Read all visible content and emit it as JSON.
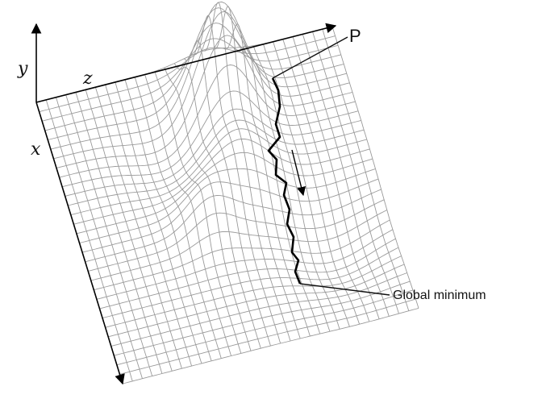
{
  "axes": {
    "y_label": "y",
    "z_label": "z",
    "x_label": "x"
  },
  "annotations": {
    "start_point_label": "P",
    "minimum_label": "Global minimum"
  },
  "colors": {
    "mesh": "#9a9a9a",
    "path": "#000000",
    "axis": "#000000",
    "leader": "#111111"
  }
}
